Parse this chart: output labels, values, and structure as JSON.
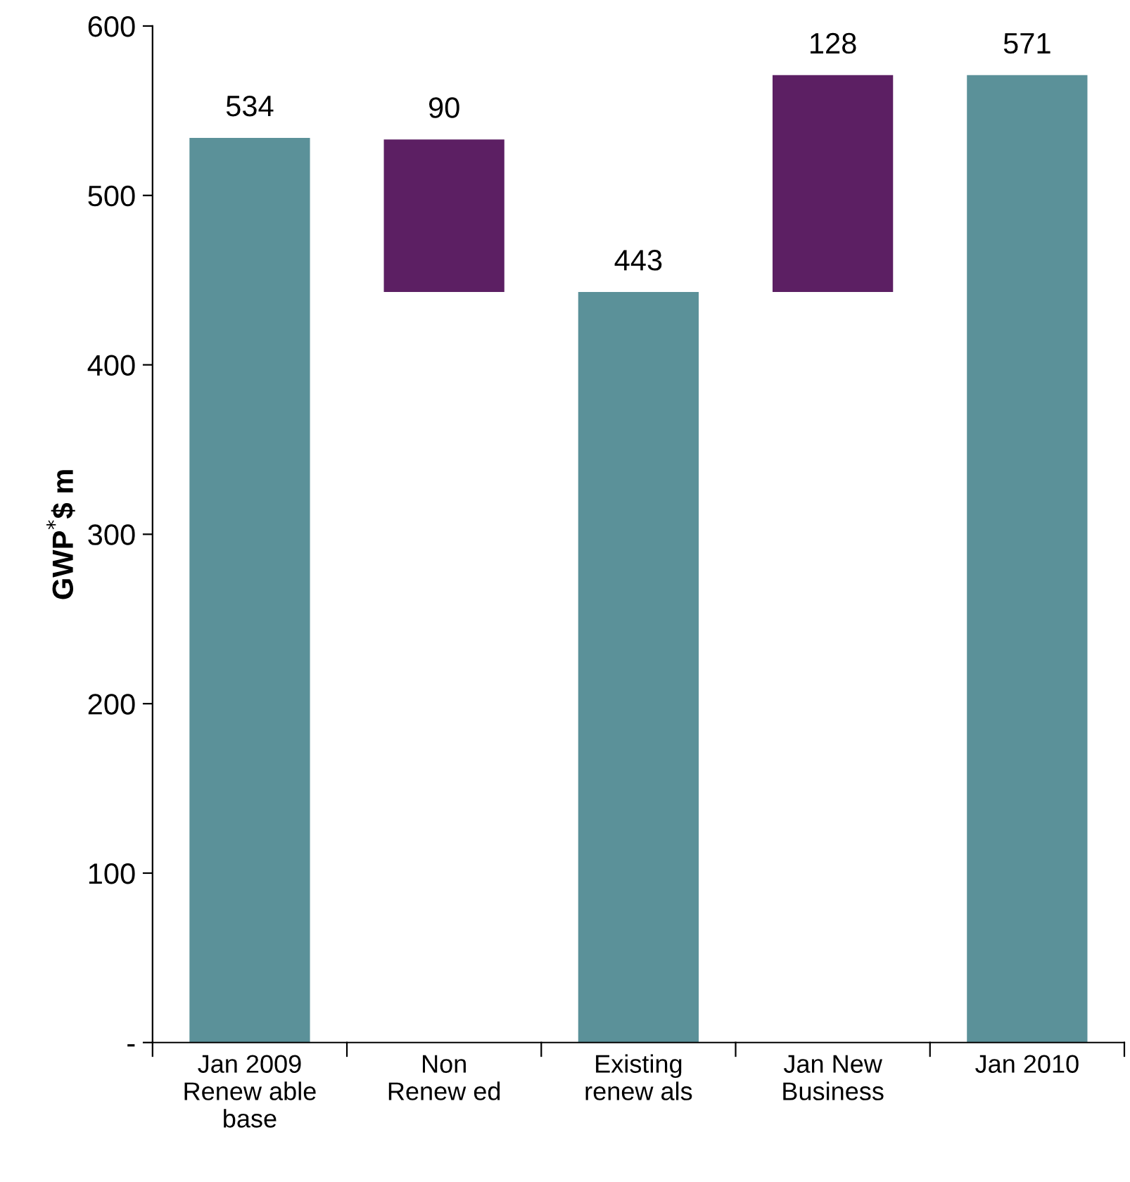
{
  "chart_data": {
    "type": "bar",
    "ylabel": "GWP$^{*}$$ m",
    "categories": [
      "Jan 2009\nRenew able\nbase",
      "Non\nRenew ed",
      "Existing\nrenew als",
      "Jan New\nBusiness",
      "Jan 2010"
    ],
    "values": [
      534,
      90,
      443,
      128,
      571
    ],
    "base": [
      0,
      443,
      0,
      443,
      0
    ],
    "colors": [
      "#5b9199",
      "#5c1f63",
      "#5b9199",
      "#5c1f63",
      "#5b9199"
    ],
    "data_labels": true,
    "ylim": [
      0,
      600
    ],
    "yticks": [
      {
        "value": 0,
        "label": "-"
      },
      100,
      200,
      300,
      400,
      500,
      600
    ],
    "grid": false
  }
}
